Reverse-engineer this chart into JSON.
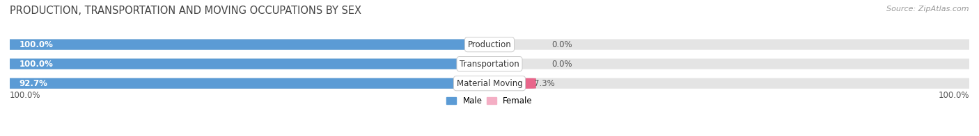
{
  "title": "PRODUCTION, TRANSPORTATION AND MOVING OCCUPATIONS BY SEX",
  "source": "Source: ZipAtlas.com",
  "categories": [
    "Production",
    "Transportation",
    "Material Moving"
  ],
  "male_values": [
    100.0,
    100.0,
    92.7
  ],
  "female_values": [
    0.0,
    0.0,
    7.3
  ],
  "male_color_full": "#5b9bd5",
  "male_color_light": "#b8d0e8",
  "female_color_light": "#f4aec4",
  "female_color_strong": "#e8658a",
  "bar_bg_color": "#e4e4e4",
  "title_fontsize": 10.5,
  "label_fontsize": 8.5,
  "value_fontsize": 8.5,
  "tick_fontsize": 8.5,
  "source_fontsize": 8,
  "male_label": "Male",
  "female_label": "Female",
  "x_left_label": "100.0%",
  "x_right_label": "100.0%"
}
